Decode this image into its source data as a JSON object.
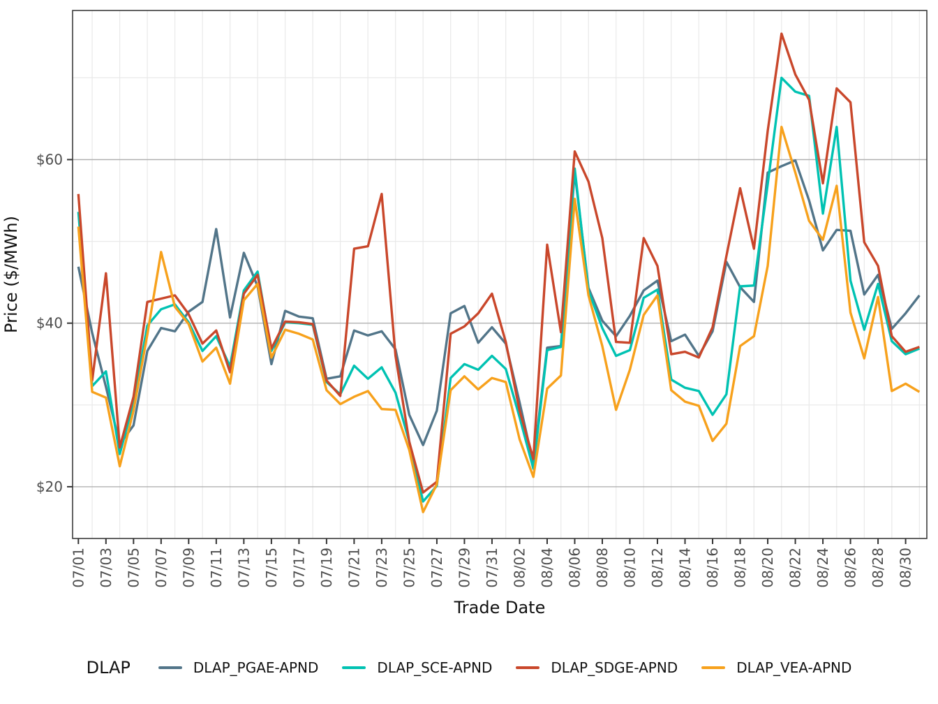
{
  "chart_data": {
    "type": "line",
    "title": "",
    "xlabel": "Trade Date",
    "ylabel": "Price ($/MWh)",
    "legend_title": "DLAP",
    "legend_position": "bottom",
    "grid": true,
    "ylim": [
      13.6,
      78.3
    ],
    "y_major_ticks": [
      {
        "value": 20,
        "label": "$20"
      },
      {
        "value": 40,
        "label": "$40"
      },
      {
        "value": 60,
        "label": "$60"
      }
    ],
    "y_minor_gridlines": [
      30,
      50,
      70
    ],
    "x_tick_every_days": 2,
    "x": [
      "07/01",
      "07/02",
      "07/03",
      "07/04",
      "07/05",
      "07/06",
      "07/07",
      "07/08",
      "07/09",
      "07/10",
      "07/11",
      "07/12",
      "07/13",
      "07/14",
      "07/15",
      "07/16",
      "07/17",
      "07/18",
      "07/19",
      "07/20",
      "07/21",
      "07/22",
      "07/23",
      "07/24",
      "07/25",
      "07/26",
      "07/27",
      "07/28",
      "07/29",
      "07/30",
      "07/31",
      "08/01",
      "08/02",
      "08/03",
      "08/04",
      "08/05",
      "08/06",
      "08/07",
      "08/08",
      "08/09",
      "08/10",
      "08/11",
      "08/12",
      "08/13",
      "08/14",
      "08/15",
      "08/16",
      "08/17",
      "08/18",
      "08/19",
      "08/20",
      "08/21",
      "08/22",
      "08/23",
      "08/24",
      "08/25",
      "08/26",
      "08/27",
      "08/28",
      "08/29",
      "08/30",
      "08/31"
    ],
    "series": [
      {
        "name": "DLAP_PGAE-APND",
        "color": "#527589",
        "values": [
          46.9,
          38.8,
          32.2,
          25.2,
          27.5,
          36.6,
          39.4,
          39.0,
          41.4,
          42.6,
          51.5,
          40.7,
          48.6,
          44.5,
          35.0,
          41.5,
          40.8,
          40.6,
          33.2,
          33.5,
          39.1,
          38.5,
          39.0,
          36.8,
          28.8,
          25.1,
          29.3,
          41.2,
          42.1,
          37.6,
          39.5,
          37.5,
          30.3,
          22.8,
          37.0,
          37.2,
          58.5,
          44.3,
          40.3,
          38.4,
          40.9,
          44.0,
          45.2,
          37.8,
          38.6,
          36.0,
          39.0,
          47.5,
          44.4,
          42.6,
          58.4,
          59.2,
          59.9,
          55.0,
          48.9,
          51.4,
          51.3,
          43.5,
          45.9,
          39.3,
          41.2,
          43.4
        ]
      },
      {
        "name": "DLAP_SCE-APND",
        "color": "#00C2B2",
        "values": [
          53.6,
          32.3,
          34.1,
          24.0,
          30.3,
          39.7,
          41.7,
          42.3,
          40.1,
          36.6,
          38.4,
          34.7,
          44.0,
          46.3,
          36.6,
          40.1,
          40.0,
          39.8,
          32.8,
          31.3,
          34.8,
          33.2,
          34.6,
          31.5,
          25.5,
          18.2,
          20.1,
          33.3,
          35.0,
          34.3,
          36.0,
          34.4,
          28.5,
          22.2,
          36.7,
          37.1,
          58.9,
          44.0,
          39.4,
          36.0,
          36.7,
          43.1,
          44.1,
          33.1,
          32.1,
          31.7,
          28.8,
          31.3,
          44.5,
          44.6,
          57.0,
          70.0,
          68.3,
          67.8,
          53.4,
          64.0,
          45.2,
          39.2,
          44.8,
          37.8,
          36.2,
          36.9
        ]
      },
      {
        "name": "DLAP_SDGE-APND",
        "color": "#C9472B",
        "values": [
          55.8,
          33.0,
          46.1,
          24.8,
          31.0,
          42.6,
          43.0,
          43.4,
          41.1,
          37.5,
          39.1,
          34.0,
          43.6,
          45.9,
          36.9,
          40.2,
          40.1,
          39.9,
          33.0,
          31.1,
          49.1,
          49.4,
          55.8,
          36.0,
          25.5,
          19.3,
          20.6,
          38.7,
          39.6,
          41.2,
          43.6,
          37.7,
          29.3,
          23.4,
          49.6,
          38.9,
          61.0,
          57.3,
          50.4,
          37.7,
          37.6,
          50.4,
          47.0,
          36.2,
          36.5,
          35.8,
          39.5,
          48.2,
          56.5,
          49.1,
          63.5,
          75.4,
          70.4,
          67.3,
          57.1,
          68.7,
          67.0,
          49.9,
          47.0,
          38.4,
          36.5,
          37.1
        ]
      },
      {
        "name": "DLAP_VEA-APND",
        "color": "#F7A11C",
        "values": [
          51.8,
          31.6,
          30.9,
          22.5,
          29.3,
          38.6,
          48.7,
          42.0,
          39.9,
          35.3,
          37.0,
          32.6,
          42.8,
          44.8,
          35.8,
          39.2,
          38.7,
          38.0,
          31.8,
          30.1,
          31.0,
          31.7,
          29.5,
          29.4,
          24.5,
          16.9,
          20.3,
          31.8,
          33.5,
          31.9,
          33.3,
          32.8,
          25.8,
          21.2,
          32.0,
          33.6,
          55.2,
          43.4,
          37.2,
          29.4,
          34.3,
          41.0,
          43.4,
          31.8,
          30.4,
          29.9,
          25.6,
          27.7,
          37.2,
          38.4,
          47.0,
          64.0,
          58.4,
          52.5,
          50.2,
          56.8,
          41.3,
          35.7,
          43.2,
          31.7,
          32.6,
          31.6
        ]
      }
    ]
  }
}
